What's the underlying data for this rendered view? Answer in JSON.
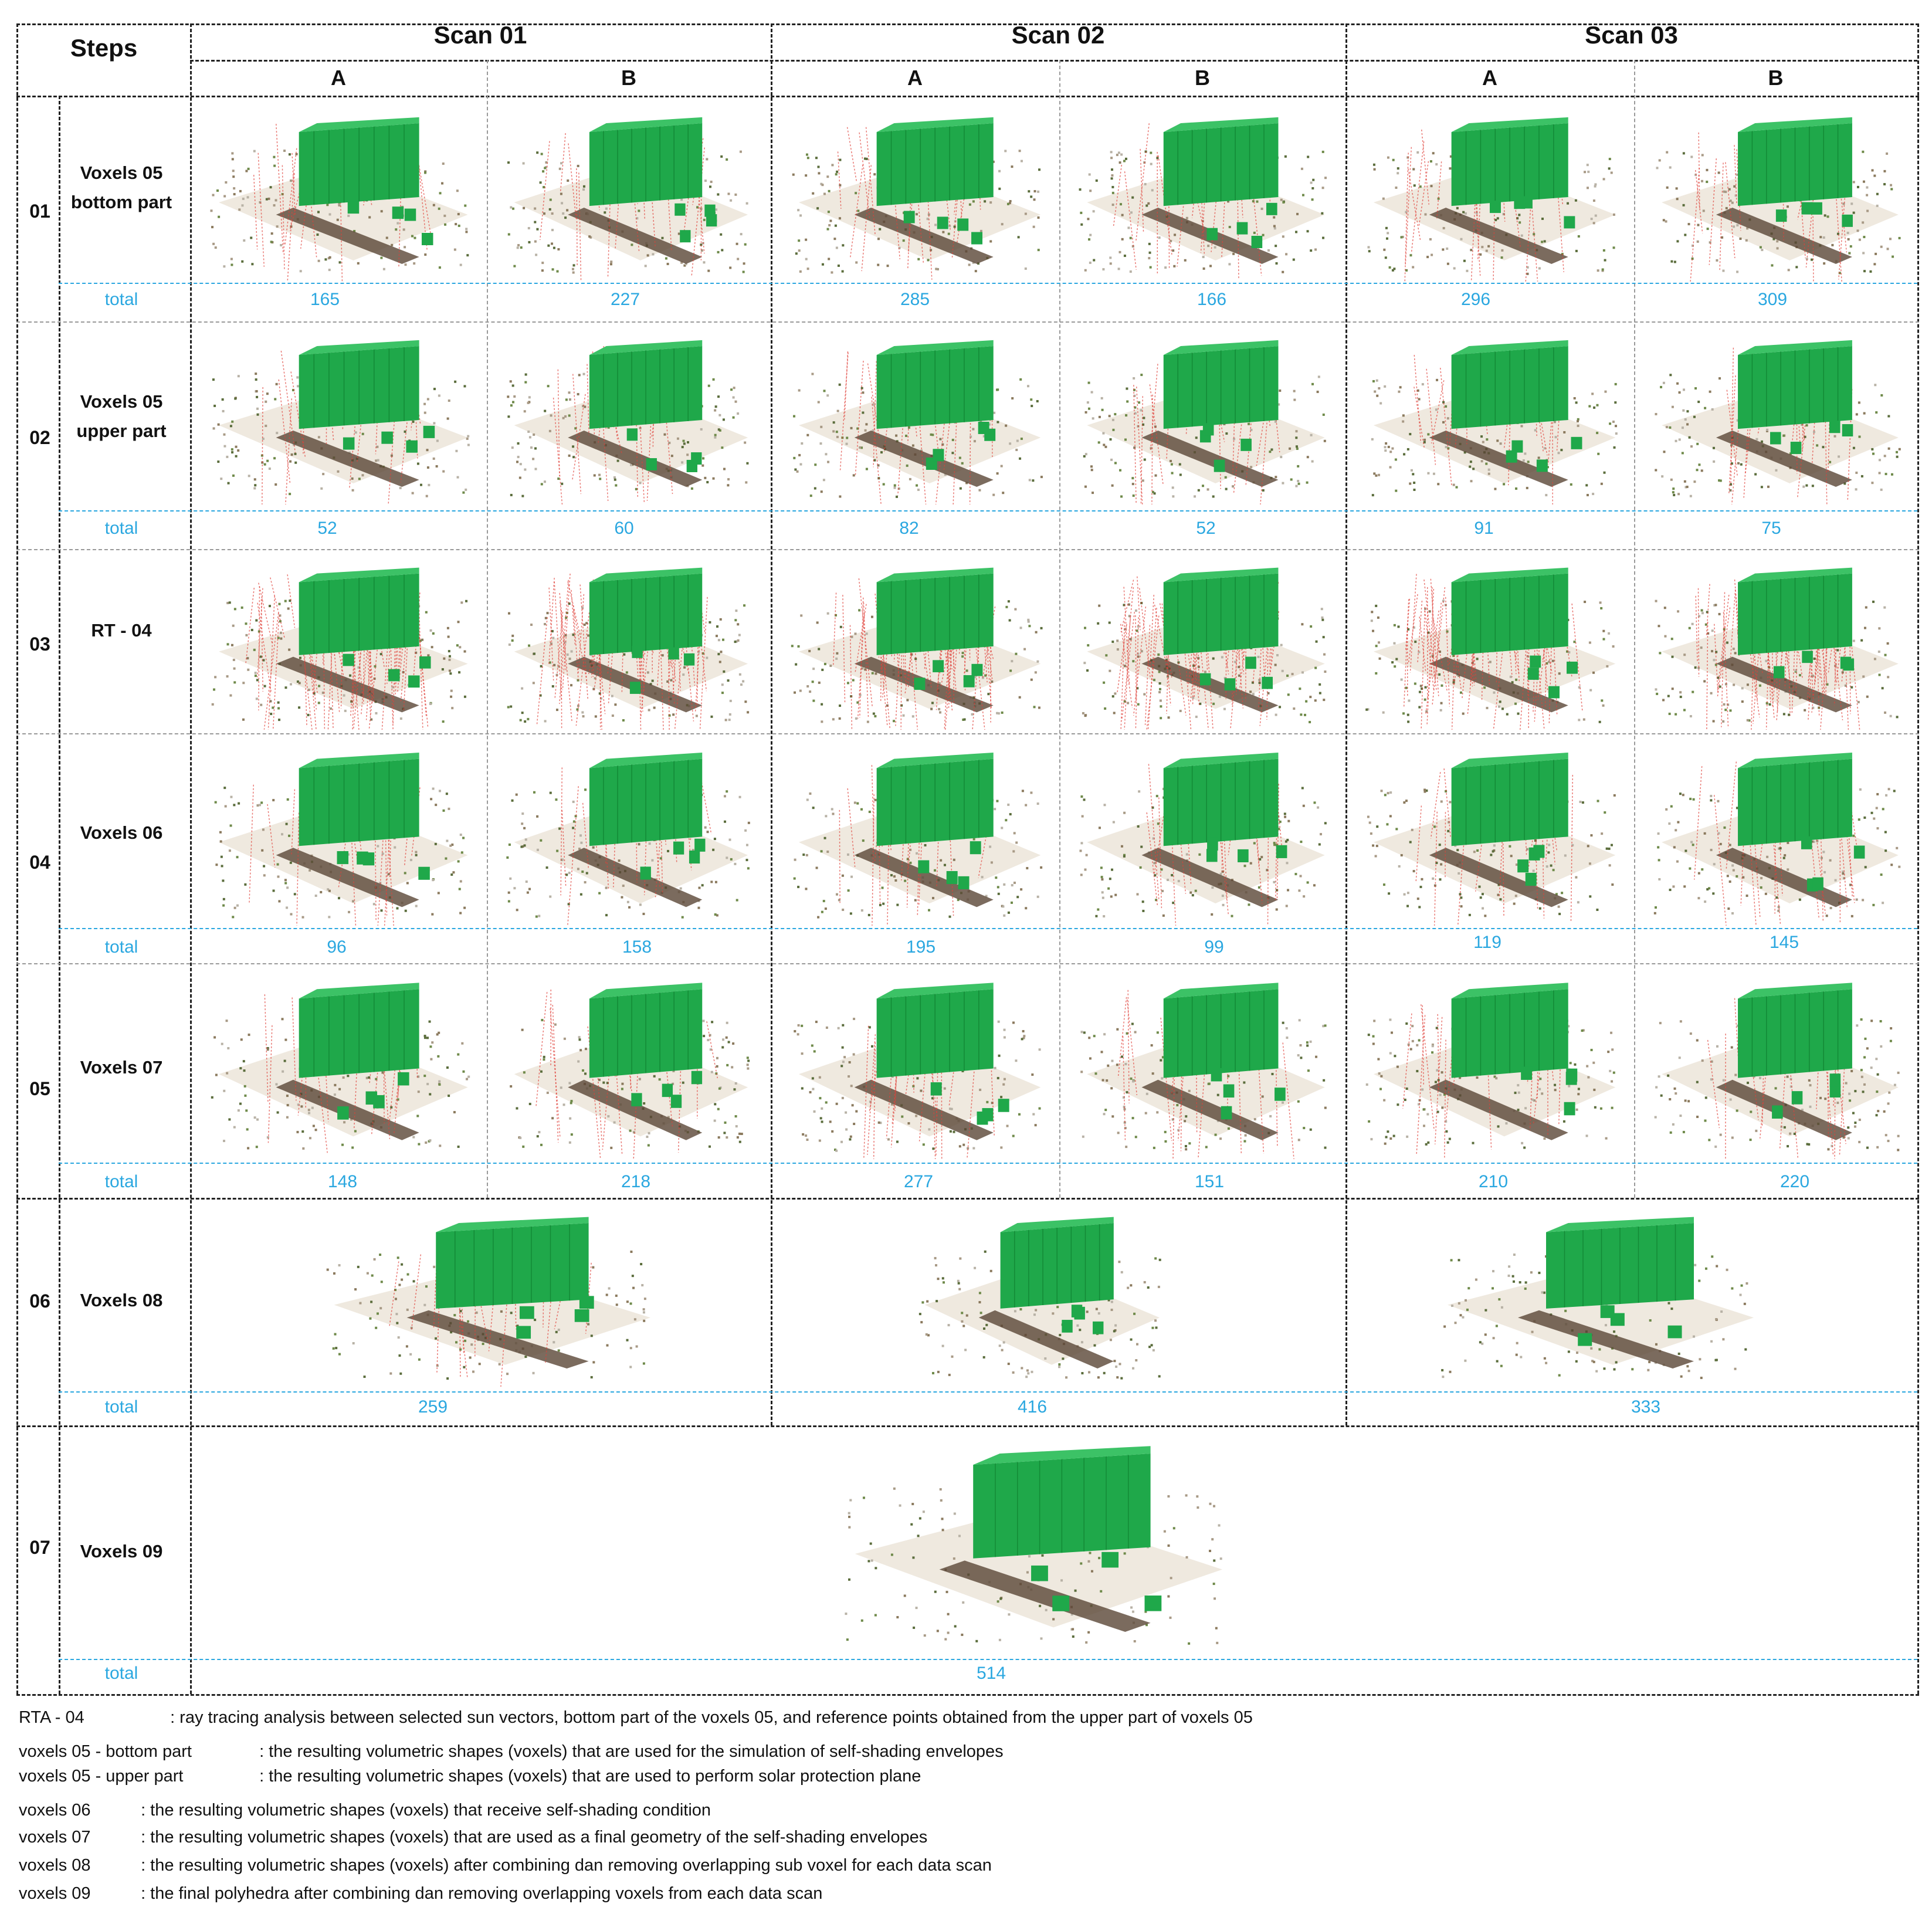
{
  "header": {
    "steps_label": "Steps",
    "scans": [
      "Scan 01",
      "Scan 02",
      "Scan 03"
    ],
    "sub_labels": [
      "A",
      "B",
      "A",
      "B",
      "A",
      "B"
    ]
  },
  "total_label": "total",
  "rows": [
    {
      "num": "01",
      "label_line1": "Voxels 05",
      "label_line2": "bottom part",
      "totals": [
        "165",
        "227",
        "285",
        "166",
        "296",
        "309"
      ]
    },
    {
      "num": "02",
      "label_line1": "Voxels 05",
      "label_line2": "upper part",
      "totals": [
        "52",
        "60",
        "82",
        "52",
        "91",
        "75"
      ]
    },
    {
      "num": "03",
      "label_line1": "RT - 04",
      "label_line2": "",
      "totals": []
    },
    {
      "num": "04",
      "label_line1": "Voxels 06",
      "label_line2": "",
      "totals": [
        "96",
        "158",
        "195",
        "99",
        "119",
        "145"
      ]
    },
    {
      "num": "05",
      "label_line1": "Voxels 07",
      "label_line2": "",
      "totals": [
        "148",
        "218",
        "277",
        "151",
        "210",
        "220"
      ]
    },
    {
      "num": "06",
      "label_line1": "Voxels 08",
      "label_line2": "",
      "totals": [
        "259",
        "416",
        "333"
      ]
    },
    {
      "num": "07",
      "label_line1": "Voxels 09",
      "label_line2": "",
      "totals": [
        "514"
      ]
    }
  ],
  "legend": [
    {
      "key": "RTA - 04",
      "text": ": ray tracing analysis between selected sun vectors,  bottom part of the voxels 05, and reference points obtained from the upper part of voxels 05"
    },
    {
      "key": "voxels 05 - bottom part",
      "text": ": the resulting volumetric shapes (voxels) that are used for the simulation of self-shading envelopes"
    },
    {
      "key": "voxels 05 - upper part",
      "text": ": the resulting volumetric shapes (voxels) that are used to perform solar protection plane"
    },
    {
      "key": "voxels 06",
      "text": ": the resulting volumetric shapes (voxels) that receive self-shading condition"
    },
    {
      "key": "voxels 07",
      "text": ": the resulting volumetric shapes (voxels) that are used as a final geometry of the self-shading envelopes"
    },
    {
      "key": "voxels 08",
      "text": ": the resulting volumetric shapes (voxels) after combining dan removing overlapping sub voxel for each data scan"
    },
    {
      "key": "voxels 09",
      "text": ": the final polyhedra after combining dan removing overlapping voxels from each data scan"
    }
  ],
  "colors": {
    "voxel_green": "#1fa84a",
    "ray_red": "#e0413a",
    "total_cyan": "#2aa7e0"
  }
}
